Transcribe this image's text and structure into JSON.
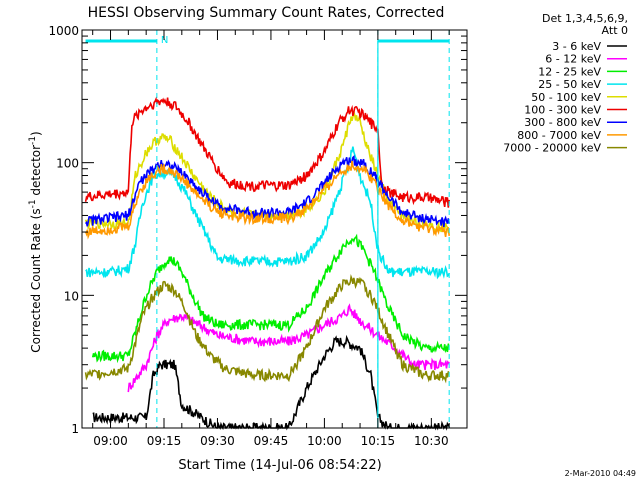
{
  "chart_data": {
    "type": "line",
    "title": "HESSI Observing Summary Count Rates, Corrected",
    "xlabel": "Start Time (14-Jul-06 08:54:22)",
    "ylabel": "Corrected Count Rate (s",
    "ylabel_sup1": "-1",
    "ylabel_mid": " detector",
    "ylabel_sup2": "-1",
    "ylabel_end": ")",
    "yscale": "log",
    "ylim": [
      1,
      1000
    ],
    "xlim_minutes": [
      -8,
      100
    ],
    "x_tick_labels": [
      "09:00",
      "09:15",
      "09:30",
      "09:45",
      "10:00",
      "10:15",
      "10:30"
    ],
    "x_tick_minutes": [
      0,
      15,
      30,
      45,
      60,
      75,
      90
    ],
    "y_tick_labels": [
      "1",
      "10",
      "100",
      "1000"
    ],
    "y_tick_values": [
      1,
      10,
      100,
      1000
    ],
    "legend_header_1": "Det 1,3,4,5,6,9,",
    "legend_header_2": "Att 0",
    "legend": [
      {
        "label": "3 - 6 keV",
        "color": "#000000"
      },
      {
        "label": "6 - 12 keV",
        "color": "#ff00ff"
      },
      {
        "label": "12 - 25 keV",
        "color": "#00ee00"
      },
      {
        "label": "25 - 50 keV",
        "color": "#00e5ee"
      },
      {
        "label": "50 - 100 keV",
        "color": "#dddd00"
      },
      {
        "label": "100 - 300 keV",
        "color": "#ee0000"
      },
      {
        "label": "300 - 800 keV",
        "color": "#0000ff"
      },
      {
        "label": "800 - 7000 keV",
        "color": "#ff9900"
      },
      {
        "label": "7000 - 20000 keV",
        "color": "#888800"
      }
    ],
    "annotation_n": "N",
    "night_segments": [
      [
        -7,
        13
      ],
      [
        75,
        95
      ]
    ],
    "dashed_markers_minutes": [
      13,
      75,
      95
    ],
    "series": [
      {
        "name": "3 - 6 keV",
        "color": "#000000",
        "x": [
          -5,
          10,
          12,
          14,
          18,
          20,
          30,
          50,
          55,
          60,
          63,
          66,
          70,
          73,
          75,
          78,
          82,
          88,
          92,
          95
        ],
        "y": [
          1.2,
          1.2,
          2.5,
          3.0,
          3.0,
          1.5,
          1.0,
          1.0,
          2.0,
          3.5,
          4.5,
          4.5,
          4.0,
          2.5,
          1.2,
          1.0,
          1.0,
          1.0,
          1.0,
          1.0
        ]
      },
      {
        "name": "6 - 12 keV",
        "color": "#ff00ff",
        "x": [
          5,
          10,
          13,
          16,
          20,
          25,
          30,
          40,
          50,
          55,
          60,
          65,
          67,
          70,
          75,
          80,
          85,
          90,
          95
        ],
        "y": [
          2.0,
          3.0,
          5.0,
          6.5,
          7.0,
          6.0,
          5.0,
          4.5,
          4.5,
          5.0,
          6.0,
          7.0,
          8.0,
          6.5,
          5.0,
          4.0,
          3.0,
          3.0,
          3.0
        ]
      },
      {
        "name": "12 - 25 keV",
        "color": "#00ee00",
        "x": [
          -5,
          5,
          10,
          13,
          16,
          18,
          20,
          23,
          26,
          30,
          40,
          50,
          55,
          60,
          65,
          68,
          71,
          74,
          78,
          82,
          88,
          95
        ],
        "y": [
          3.5,
          3.5,
          10,
          15,
          19,
          18,
          15,
          10,
          7,
          6,
          6,
          6,
          8,
          14,
          23,
          28,
          22,
          15,
          8,
          5,
          4,
          4
        ]
      },
      {
        "name": "25 - 50 keV",
        "color": "#00e5ee",
        "x": [
          -7,
          0,
          5,
          7,
          9,
          12,
          15,
          18,
          21,
          24,
          27,
          30,
          40,
          50,
          55,
          60,
          64,
          67,
          68,
          70,
          73,
          75,
          78,
          82,
          88,
          95
        ],
        "y": [
          15,
          15,
          16,
          25,
          50,
          80,
          85,
          80,
          60,
          40,
          28,
          19,
          18,
          18,
          20,
          30,
          60,
          100,
          130,
          80,
          50,
          22,
          15,
          15,
          15,
          15
        ]
      },
      {
        "name": "50 - 100 keV",
        "color": "#dddd00",
        "x": [
          -7,
          5,
          7,
          10,
          13,
          15,
          17,
          20,
          24,
          28,
          32,
          40,
          50,
          55,
          60,
          65,
          67,
          68,
          70,
          72,
          75,
          78,
          82,
          88,
          95
        ],
        "y": [
          35,
          35,
          80,
          120,
          150,
          155,
          145,
          110,
          75,
          55,
          45,
          40,
          40,
          45,
          60,
          130,
          200,
          230,
          200,
          130,
          80,
          50,
          40,
          35,
          32
        ]
      },
      {
        "name": "100 - 300 keV",
        "color": "#ee0000",
        "x": [
          -7,
          5,
          6,
          8,
          12,
          15,
          18,
          22,
          26,
          30,
          33,
          40,
          50,
          55,
          60,
          64,
          67,
          70,
          73,
          75,
          76,
          78,
          82,
          88,
          95
        ],
        "y": [
          55,
          60,
          200,
          240,
          280,
          295,
          270,
          200,
          130,
          90,
          70,
          67,
          67,
          80,
          120,
          200,
          250,
          240,
          200,
          180,
          70,
          60,
          55,
          55,
          50
        ]
      },
      {
        "name": "300 - 800 keV",
        "color": "#0000ff",
        "x": [
          -7,
          5,
          8,
          11,
          14,
          17,
          21,
          25,
          30,
          35,
          40,
          50,
          55,
          60,
          65,
          68,
          71,
          74,
          78,
          82,
          88,
          95
        ],
        "y": [
          36,
          40,
          70,
          85,
          100,
          95,
          80,
          62,
          48,
          44,
          42,
          42,
          50,
          70,
          100,
          105,
          100,
          80,
          55,
          42,
          38,
          35
        ]
      },
      {
        "name": "800 - 7000 keV",
        "color": "#ff9900",
        "x": [
          -7,
          5,
          8,
          11,
          14,
          17,
          21,
          25,
          30,
          35,
          40,
          50,
          55,
          60,
          65,
          68,
          71,
          74,
          78,
          82,
          88,
          95
        ],
        "y": [
          30,
          33,
          60,
          78,
          90,
          88,
          72,
          55,
          43,
          39,
          38,
          38,
          45,
          62,
          88,
          95,
          90,
          72,
          48,
          36,
          32,
          30
        ]
      },
      {
        "name": "7000 - 20000 keV",
        "color": "#888800",
        "x": [
          -7,
          5,
          9,
          12,
          15,
          18,
          21,
          24,
          28,
          32,
          40,
          50,
          55,
          60,
          65,
          68,
          71,
          74,
          78,
          82,
          88,
          95
        ],
        "y": [
          2.5,
          2.8,
          7,
          10,
          12,
          11,
          8,
          5,
          3.5,
          2.8,
          2.5,
          2.5,
          4,
          8,
          12,
          13,
          12,
          9,
          5,
          3,
          2.5,
          2.5
        ]
      }
    ]
  },
  "footer_timestamp": "2-Mar-2010 04:49"
}
